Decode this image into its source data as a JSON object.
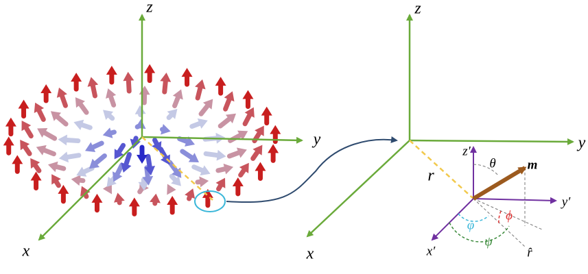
{
  "left_axes": {
    "z": "z",
    "y": "y",
    "x": "x"
  },
  "right_axes": {
    "z": "z",
    "y": "y",
    "x": "x",
    "r": "r"
  },
  "local_frame": {
    "z_prime": "z′",
    "y_prime": "y′",
    "x_prime": "x′",
    "theta": "θ",
    "m": "m",
    "phi_blue": "φ",
    "phi_red": "ϕ",
    "psi": "ψ",
    "r_hat": "r̂"
  }
}
